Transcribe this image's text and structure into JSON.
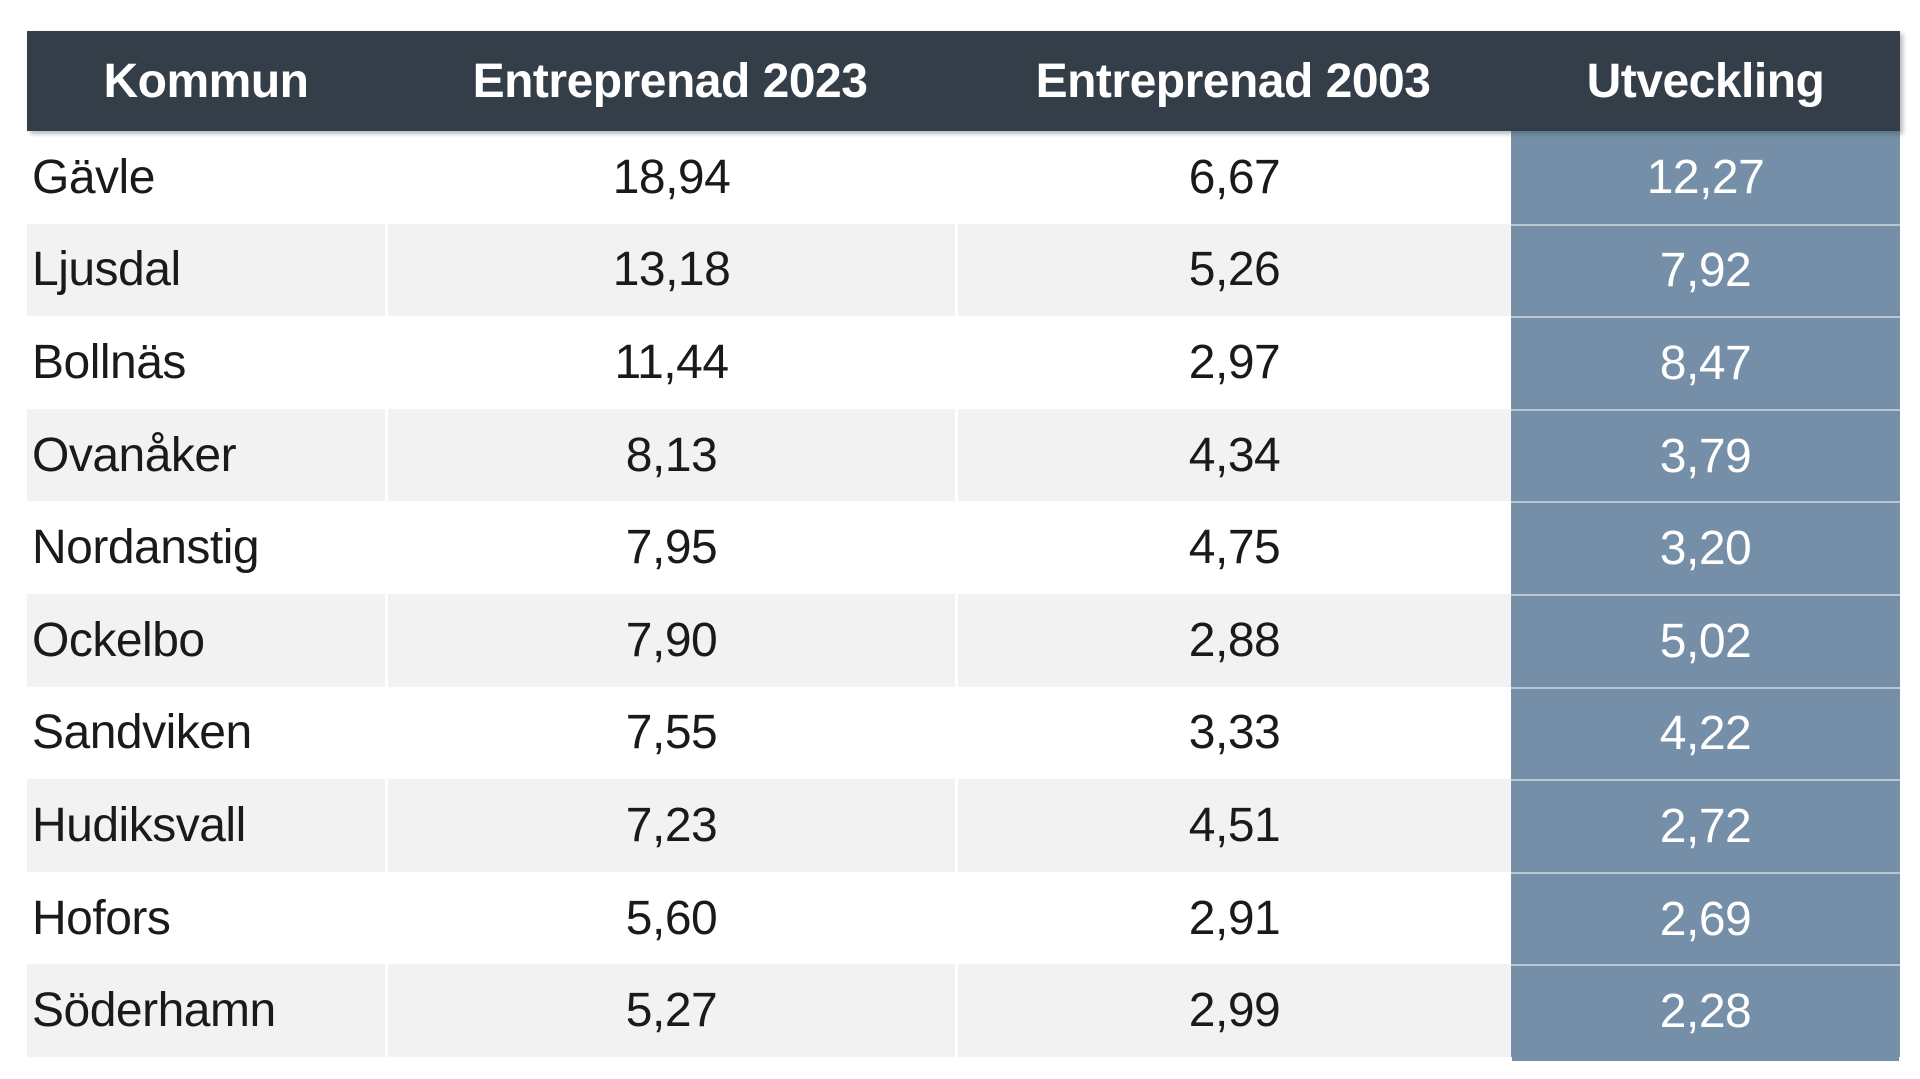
{
  "chart_data": {
    "type": "table",
    "columns": [
      "Kommun",
      "Entreprenad 2023",
      "Entreprenad 2003",
      "Utveckling"
    ],
    "rows": [
      [
        "Gävle",
        "18,94",
        "6,67",
        "12,27"
      ],
      [
        "Ljusdal",
        "13,18",
        "5,26",
        "7,92"
      ],
      [
        "Bollnäs",
        "11,44",
        "2,97",
        "8,47"
      ],
      [
        "Ovanåker",
        "8,13",
        "4,34",
        "3,79"
      ],
      [
        "Nordanstig",
        "7,95",
        "4,75",
        "3,20"
      ],
      [
        "Ockelbo",
        "7,90",
        "2,88",
        "5,02"
      ],
      [
        "Sandviken",
        "7,55",
        "3,33",
        "4,22"
      ],
      [
        "Hudiksvall",
        "7,23",
        "4,51",
        "2,72"
      ],
      [
        "Hofors",
        "5,60",
        "2,91",
        "2,69"
      ],
      [
        "Söderhamn",
        "5,27",
        "2,99",
        "2,28"
      ]
    ],
    "highlighted_column": "Utveckling",
    "layout_hints": {
      "header_position": "top",
      "zebra_striping": true,
      "first_column_align": "left",
      "numeric_align": "center"
    }
  },
  "colors": {
    "header_bg": "#333E48",
    "header_text": "#FFFFFF",
    "row_bg": "#FFFFFF",
    "row_alt_bg": "#F2F2F2",
    "highlight_bg": "#748FA7",
    "highlight_text": "#FFFFFF",
    "body_text": "#1A1A1A"
  }
}
